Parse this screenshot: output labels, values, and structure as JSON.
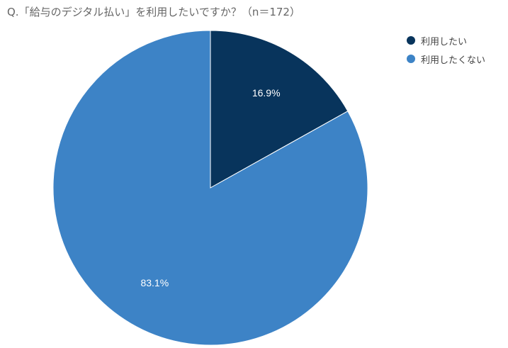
{
  "chart_data": {
    "type": "pie",
    "title": "Q.「給与のデジタル払い」を利用したいですか？（n＝172）",
    "categories": [
      "利用したい",
      "利用したくない"
    ],
    "values": [
      16.9,
      83.1
    ],
    "data_labels": [
      "16.9%",
      "83.1%"
    ],
    "colors": [
      "#08345C",
      "#3D83C6"
    ],
    "legend_position": "top-right"
  }
}
